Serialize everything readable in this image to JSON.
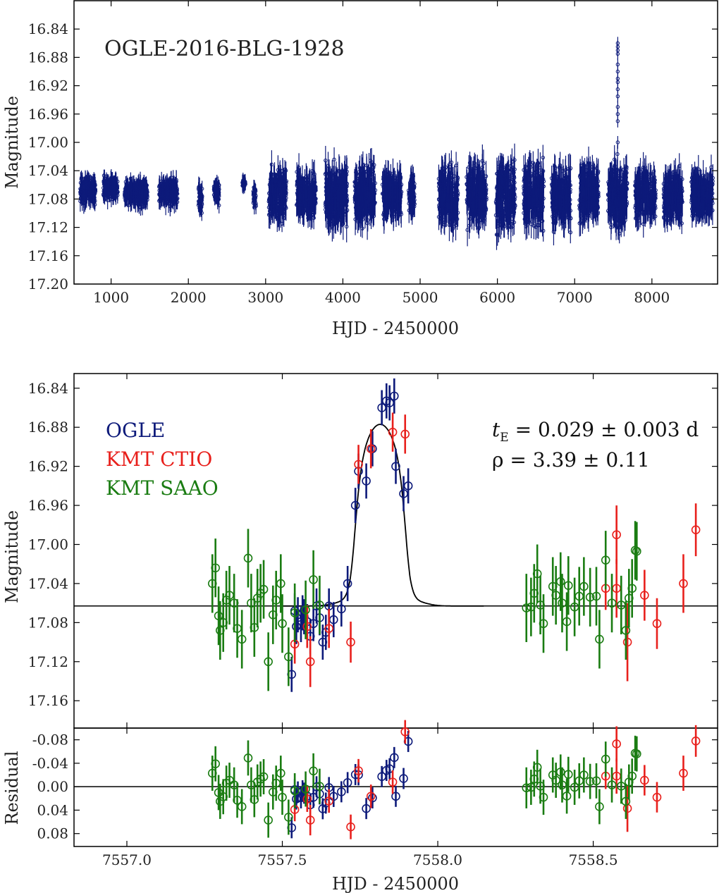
{
  "chart_data": [
    {
      "type": "scatter",
      "panel": "top",
      "title": "OGLE-2016-BLG-1928",
      "xlabel": "HJD - 2450000",
      "ylabel": "Magnitude",
      "xlim": [
        520,
        8850
      ],
      "ylim": [
        17.2,
        16.8
      ],
      "xticks": [
        "1000",
        "2000",
        "3000",
        "4000",
        "5000",
        "6000",
        "7000",
        "8000"
      ],
      "yticks": [
        "16.84",
        "16.88",
        "16.92",
        "16.96",
        "17.00",
        "17.04",
        "17.08",
        "17.12",
        "17.16",
        "17.20"
      ],
      "series": [
        {
          "name": "OGLE",
          "color": "#0d1a7a",
          "seasons": [
            {
              "x_start": 600,
              "x_end": 800,
              "mag_mean": 17.068,
              "mag_spread": 0.035,
              "err": 0.012
            },
            {
              "x_start": 900,
              "x_end": 1090,
              "mag_mean": 17.065,
              "mag_spread": 0.03,
              "err": 0.01
            },
            {
              "x_start": 1170,
              "x_end": 1470,
              "mag_mean": 17.07,
              "mag_spread": 0.035,
              "err": 0.011
            },
            {
              "x_start": 1620,
              "x_end": 1860,
              "mag_mean": 17.07,
              "mag_spread": 0.035,
              "err": 0.012
            },
            {
              "x_start": 2130,
              "x_end": 2180,
              "mag_mean": 17.08,
              "mag_spread": 0.04,
              "err": 0.012
            },
            {
              "x_start": 2330,
              "x_end": 2400,
              "mag_mean": 17.07,
              "mag_spread": 0.03,
              "err": 0.01
            },
            {
              "x_start": 2700,
              "x_end": 2740,
              "mag_mean": 17.058,
              "mag_spread": 0.01,
              "err": 0.01
            },
            {
              "x_start": 2840,
              "x_end": 2880,
              "mag_mean": 17.075,
              "mag_spread": 0.03,
              "err": 0.01
            },
            {
              "x_start": 3040,
              "x_end": 3270,
              "mag_mean": 17.075,
              "mag_spread": 0.07,
              "err": 0.016
            },
            {
              "x_start": 3400,
              "x_end": 3650,
              "mag_mean": 17.075,
              "mag_spread": 0.06,
              "err": 0.016
            },
            {
              "x_start": 3770,
              "x_end": 4060,
              "mag_mean": 17.075,
              "mag_spread": 0.08,
              "err": 0.018
            },
            {
              "x_start": 4150,
              "x_end": 4420,
              "mag_mean": 17.075,
              "mag_spread": 0.08,
              "err": 0.018
            },
            {
              "x_start": 4510,
              "x_end": 4760,
              "mag_mean": 17.075,
              "mag_spread": 0.06,
              "err": 0.017
            },
            {
              "x_start": 4850,
              "x_end": 4930,
              "mag_mean": 17.075,
              "mag_spread": 0.06,
              "err": 0.016
            },
            {
              "x_start": 5240,
              "x_end": 5490,
              "mag_mean": 17.075,
              "mag_spread": 0.08,
              "err": 0.018
            },
            {
              "x_start": 5600,
              "x_end": 5860,
              "mag_mean": 17.075,
              "mag_spread": 0.08,
              "err": 0.018
            },
            {
              "x_start": 5980,
              "x_end": 6230,
              "mag_mean": 17.075,
              "mag_spread": 0.09,
              "err": 0.018
            },
            {
              "x_start": 6340,
              "x_end": 6600,
              "mag_mean": 17.075,
              "mag_spread": 0.09,
              "err": 0.018
            },
            {
              "x_start": 6700,
              "x_end": 6950,
              "mag_mean": 17.075,
              "mag_spread": 0.08,
              "err": 0.018
            },
            {
              "x_start": 7060,
              "x_end": 7310,
              "mag_mean": 17.075,
              "mag_spread": 0.08,
              "err": 0.018
            },
            {
              "x_start": 7430,
              "x_end": 7680,
              "mag_mean": 17.075,
              "mag_spread": 0.09,
              "err": 0.018
            },
            {
              "x_start": 7780,
              "x_end": 8050,
              "mag_mean": 17.075,
              "mag_spread": 0.07,
              "err": 0.017
            },
            {
              "x_start": 8150,
              "x_end": 8400,
              "mag_mean": 17.075,
              "mag_spread": 0.07,
              "err": 0.017
            },
            {
              "x_start": 8510,
              "x_end": 8790,
              "mag_mean": 17.075,
              "mag_spread": 0.06,
              "err": 0.017
            }
          ],
          "spike": {
            "x": 7557.8,
            "mags": [
              16.86,
              16.865,
              16.87,
              16.875,
              16.89,
              16.9,
              16.91,
              16.915,
              16.925,
              16.935,
              16.95,
              16.96,
              16.97,
              17.0
            ]
          }
        }
      ]
    },
    {
      "type": "scatter",
      "panel": "middle",
      "xlabel": "HJD - 2450000",
      "ylabel": "Magnitude",
      "xlim": [
        7556.83,
        7558.9
      ],
      "ylim": [
        17.188,
        16.825
      ],
      "yticks": [
        "16.84",
        "16.88",
        "16.92",
        "16.96",
        "17.00",
        "17.04",
        "17.08",
        "17.12",
        "17.16"
      ],
      "legend": {
        "placement": "top-left",
        "entries": [
          "OGLE",
          "KMT CTIO",
          "KMT SAAO"
        ]
      },
      "annotations": [
        {
          "text_main": "t",
          "text_sub": "E",
          "text_rest": " = 0.029 ± 0.003 d"
        },
        {
          "text": "ρ = 3.39 ± 0.11"
        }
      ],
      "model": {
        "baseline": 17.063,
        "peak": 16.877,
        "t0": 7557.815,
        "t_half": 0.085,
        "ingress_width": 0.01,
        "shoulder": [
          {
            "x": 7557.62,
            "mag": 17.062
          },
          {
            "x": 7557.66,
            "mag": 17.059
          },
          {
            "x": 7557.69,
            "mag": 17.053
          },
          {
            "x": 7557.71,
            "mag": 17.045
          }
        ]
      },
      "series": [
        {
          "name": "OGLE",
          "color": "#0d1a7a",
          "points": [
            [
              7557.53,
              17.133,
              0.018
            ],
            [
              7557.54,
              17.068,
              0.018
            ],
            [
              7557.545,
              17.084,
              0.018
            ],
            [
              7557.55,
              17.072,
              0.018
            ],
            [
              7557.56,
              17.082,
              0.018
            ],
            [
              7557.565,
              17.07,
              0.018
            ],
            [
              7557.57,
              17.074,
              0.018
            ],
            [
              7557.58,
              17.079,
              0.018
            ],
            [
              7557.59,
              17.094,
              0.018
            ],
            [
              7557.6,
              17.081,
              0.018
            ],
            [
              7557.61,
              17.063,
              0.018
            ],
            [
              7557.62,
              17.075,
              0.018
            ],
            [
              7557.63,
              17.1,
              0.018
            ],
            [
              7557.64,
              17.09,
              0.018
            ],
            [
              7557.65,
              17.063,
              0.018
            ],
            [
              7557.665,
              17.077,
              0.018
            ],
            [
              7557.69,
              17.066,
              0.018
            ],
            [
              7557.71,
              17.04,
              0.018
            ],
            [
              7557.735,
              16.96,
              0.018
            ],
            [
              7557.745,
              16.925,
              0.018
            ],
            [
              7557.77,
              16.935,
              0.018
            ],
            [
              7557.79,
              16.902,
              0.018
            ],
            [
              7557.82,
              16.86,
              0.018
            ],
            [
              7557.835,
              16.853,
              0.018
            ],
            [
              7557.845,
              16.855,
              0.018
            ],
            [
              7557.86,
              16.848,
              0.018
            ],
            [
              7557.865,
              16.92,
              0.018
            ],
            [
              7557.89,
              16.948,
              0.018
            ],
            [
              7557.905,
              16.94,
              0.018
            ]
          ]
        },
        {
          "name": "KMT CTIO",
          "color": "#e8201c",
          "points": [
            [
              7557.54,
              17.102,
              0.02
            ],
            [
              7557.58,
              17.084,
              0.022
            ],
            [
              7557.59,
              17.12,
              0.026
            ],
            [
              7557.65,
              17.086,
              0.02
            ],
            [
              7557.72,
              17.1,
              0.021
            ],
            [
              7557.745,
              16.918,
              0.02
            ],
            [
              7557.785,
              16.902,
              0.02
            ],
            [
              7557.855,
              16.885,
              0.02
            ],
            [
              7557.895,
              16.887,
              0.02
            ],
            [
              7558.54,
              17.045,
              0.022
            ],
            [
              7558.575,
              16.99,
              0.03
            ],
            [
              7558.575,
              17.045,
              0.03
            ],
            [
              7558.61,
              17.1,
              0.04
            ],
            [
              7558.665,
              17.052,
              0.026
            ],
            [
              7558.705,
              17.081,
              0.026
            ],
            [
              7558.79,
              17.04,
              0.03
            ],
            [
              7558.83,
              16.985,
              0.027
            ]
          ]
        },
        {
          "name": "KMT SAAO",
          "color": "#1a7c12",
          "points": [
            [
              7557.275,
              17.04,
              0.03
            ],
            [
              7557.285,
              17.024,
              0.03
            ],
            [
              7557.295,
              17.073,
              0.03
            ],
            [
              7557.3,
              17.088,
              0.03
            ],
            [
              7557.31,
              17.08,
              0.03
            ],
            [
              7557.32,
              17.057,
              0.03
            ],
            [
              7557.33,
              17.052,
              0.03
            ],
            [
              7557.345,
              17.06,
              0.03
            ],
            [
              7557.355,
              17.086,
              0.03
            ],
            [
              7557.37,
              17.097,
              0.03
            ],
            [
              7557.39,
              17.014,
              0.03
            ],
            [
              7557.4,
              17.06,
              0.03
            ],
            [
              7557.41,
              17.085,
              0.03
            ],
            [
              7557.42,
              17.055,
              0.03
            ],
            [
              7557.43,
              17.05,
              0.03
            ],
            [
              7557.44,
              17.046,
              0.03
            ],
            [
              7557.455,
              17.12,
              0.03
            ],
            [
              7557.47,
              17.072,
              0.03
            ],
            [
              7557.48,
              17.057,
              0.03
            ],
            [
              7557.495,
              17.04,
              0.03
            ],
            [
              7557.5,
              17.081,
              0.03
            ],
            [
              7557.52,
              17.115,
              0.03
            ],
            [
              7557.54,
              17.07,
              0.03
            ],
            [
              7557.575,
              17.067,
              0.03
            ],
            [
              7557.6,
              17.036,
              0.03
            ],
            [
              7557.62,
              17.062,
              0.03
            ],
            [
              7558.285,
              17.065,
              0.035
            ],
            [
              7558.3,
              17.064,
              0.03
            ],
            [
              7558.31,
              17.05,
              0.03
            ],
            [
              7558.32,
              17.03,
              0.03
            ],
            [
              7558.33,
              17.062,
              0.03
            ],
            [
              7558.34,
              17.081,
              0.03
            ],
            [
              7558.37,
              17.043,
              0.03
            ],
            [
              7558.38,
              17.052,
              0.03
            ],
            [
              7558.395,
              17.038,
              0.03
            ],
            [
              7558.4,
              17.06,
              0.03
            ],
            [
              7558.415,
              17.079,
              0.03
            ],
            [
              7558.42,
              17.042,
              0.03
            ],
            [
              7558.44,
              17.064,
              0.03
            ],
            [
              7558.455,
              17.053,
              0.03
            ],
            [
              7558.47,
              17.043,
              0.03
            ],
            [
              7558.49,
              17.054,
              0.03
            ],
            [
              7558.51,
              17.053,
              0.03
            ],
            [
              7558.52,
              17.097,
              0.03
            ],
            [
              7558.54,
              17.016,
              0.03
            ],
            [
              7558.56,
              17.06,
              0.03
            ],
            [
              7558.59,
              17.062,
              0.03
            ],
            [
              7558.605,
              17.088,
              0.03
            ],
            [
              7558.615,
              17.055,
              0.03
            ],
            [
              7558.625,
              17.045,
              0.03
            ],
            [
              7558.635,
              17.006,
              0.03
            ],
            [
              7558.64,
              17.007,
              0.03
            ]
          ]
        }
      ]
    },
    {
      "type": "scatter",
      "panel": "bottom",
      "xlabel": "HJD - 2450000",
      "ylabel": "Residual",
      "xlim": [
        7556.83,
        7558.9
      ],
      "ylim": [
        0.102,
        -0.1
      ],
      "xticks": [
        "7557.0",
        "7557.5",
        "7558.0",
        "7558.5"
      ],
      "yticks": [
        "-0.08",
        "-0.04",
        "0.00",
        "0.04",
        "0.08"
      ],
      "zero_line": 0.0
    }
  ]
}
